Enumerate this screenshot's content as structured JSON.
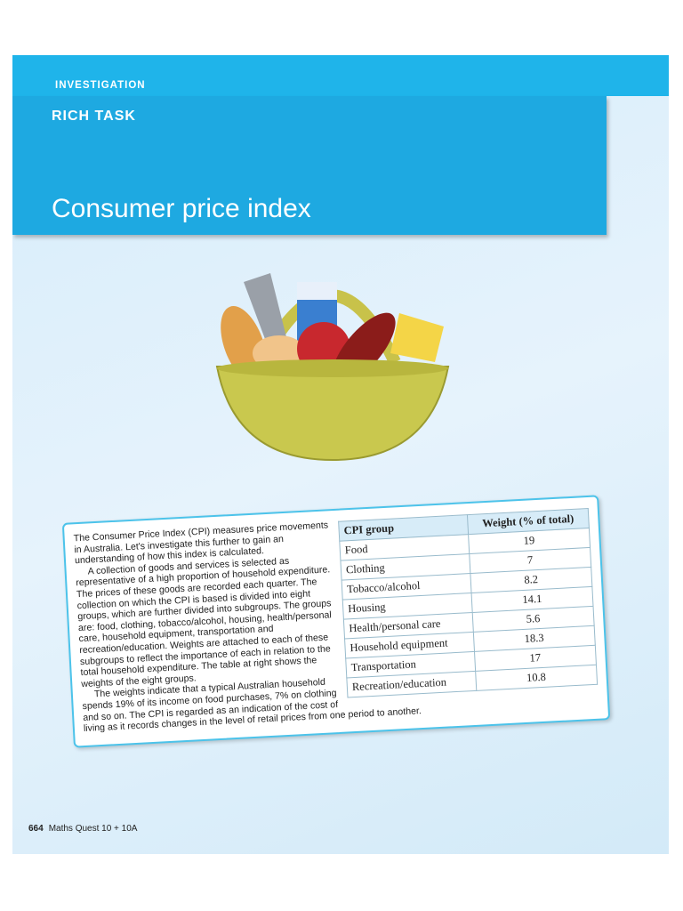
{
  "header": {
    "label": "INVESTIGATION",
    "subtitle": "RICH TASK",
    "title": "Consumer price index"
  },
  "body": {
    "paragraphs": [
      "The Consumer Price Index (CPI) measures price movements in Australia. Let's investigate this further to gain an understanding of how this index is calculated.",
      "A collection of goods and services is selected as representative of a high proportion of household expenditure. The prices of these goods are recorded each quarter. The collection on which the CPI is based is divided into eight groups, which are further divided into subgroups. The groups are: food, clothing, tobacco/alcohol, housing, health/personal care, household equipment, transportation and recreation/education. Weights are attached to each of these subgroups to reflect the importance of each in relation to the total household expenditure. The table at right shows the weights of the eight groups.",
      "The weights indicate that a typical Australian household spends 19% of its income on food purchases, 7% on clothing and so on. The CPI is regarded as an indication of the cost of living as it records changes in the level of retail prices from one period to another."
    ]
  },
  "table": {
    "headers": [
      "CPI group",
      "Weight (% of total)"
    ],
    "rows": [
      [
        "Food",
        19
      ],
      [
        "Clothing",
        7
      ],
      [
        "Tobacco/alcohol",
        8.2
      ],
      [
        "Housing",
        14.1
      ],
      [
        "Health/personal care",
        5.6
      ],
      [
        "Household equipment",
        18.3
      ],
      [
        "Transportation",
        17
      ],
      [
        "Recreation/education",
        10.8
      ]
    ]
  },
  "footer": {
    "page": "664",
    "book": "Maths Quest 10 + 10A"
  }
}
